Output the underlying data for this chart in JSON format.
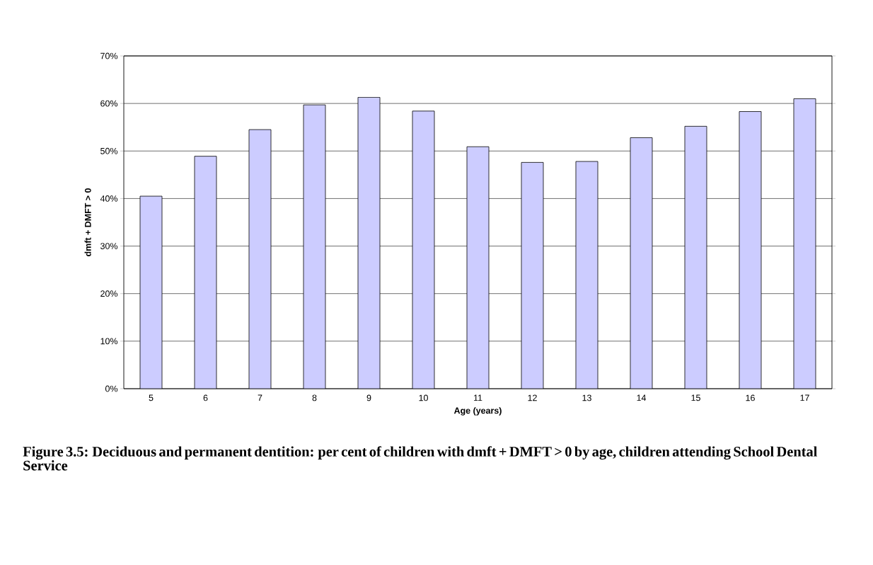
{
  "chart_data": {
    "type": "bar",
    "title": "Figure 3.5: Deciduous and permanent dentition: per cent of children with dmft + DMFT > 0 by age, children attending School Dental Service",
    "xlabel": "Age (years)",
    "ylabel": "dmft + DMFT > 0",
    "categories": [
      "5",
      "6",
      "7",
      "8",
      "9",
      "10",
      "11",
      "12",
      "13",
      "14",
      "15",
      "16",
      "17"
    ],
    "values": [
      40.5,
      48.9,
      54.5,
      59.7,
      61.3,
      58.4,
      50.9,
      47.6,
      47.8,
      52.8,
      55.2,
      58.3,
      61.0
    ],
    "color": "#ccccff",
    "ylim": [
      0,
      70
    ],
    "yticks": [
      {
        "value": 0,
        "label": "0%"
      },
      {
        "value": 10,
        "label": "10%"
      },
      {
        "value": 20,
        "label": "20%"
      },
      {
        "value": 30,
        "label": "30%"
      },
      {
        "value": 40,
        "label": "40%"
      },
      {
        "value": 50,
        "label": "50%"
      },
      {
        "value": 60,
        "label": "60%"
      },
      {
        "value": 70,
        "label": "70%"
      }
    ],
    "grid": "y"
  }
}
